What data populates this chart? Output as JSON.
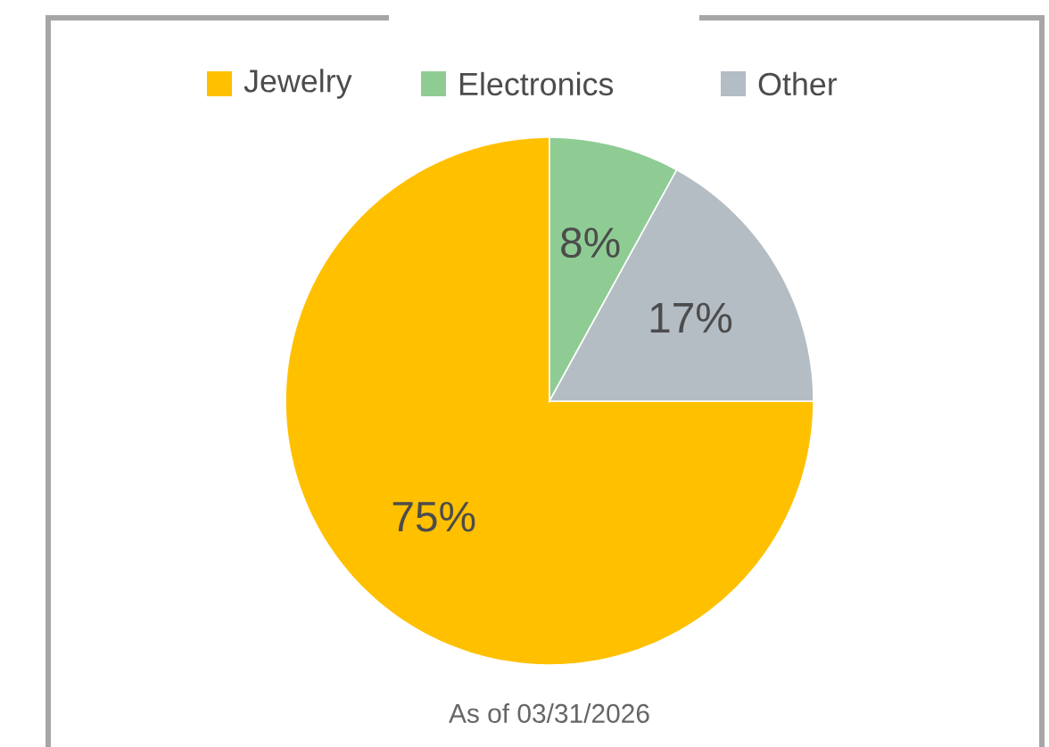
{
  "chart_data": {
    "type": "pie",
    "categories": [
      "Jewelry",
      "Electronics",
      "Other"
    ],
    "values": [
      75,
      8,
      17
    ],
    "colors": [
      "#ffc000",
      "#8fcc94",
      "#b4bcc4"
    ],
    "value_labels": [
      "75%",
      "8%",
      "17%"
    ],
    "legend": "top",
    "annotations": [
      "As of 03/31/2026"
    ]
  }
}
